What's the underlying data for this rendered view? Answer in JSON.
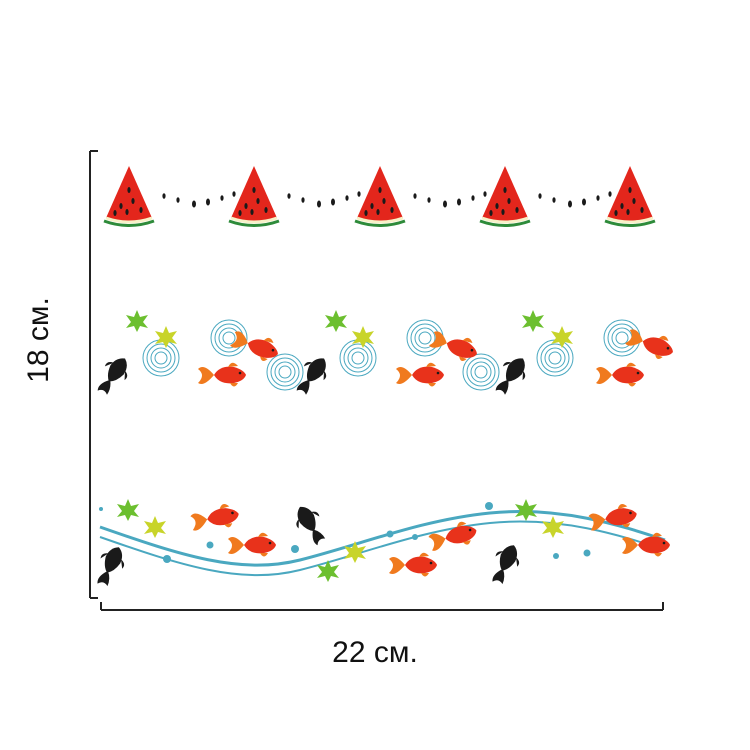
{
  "dimensions": {
    "width_label": "22 см.",
    "height_label": "18 см."
  },
  "pattern": {
    "rows": [
      {
        "name": "watermelon-row",
        "icons": [
          "watermelon-slice-icon",
          "watermelon-seed-icon"
        ]
      },
      {
        "name": "koi-ripple-row",
        "icons": [
          "goldfish-icon",
          "black-koi-icon",
          "maple-leaf-icon",
          "ripple-icon"
        ]
      },
      {
        "name": "koi-wave-row",
        "icons": [
          "goldfish-icon",
          "black-koi-icon",
          "maple-leaf-icon",
          "wave-icon",
          "bubble-icon"
        ]
      }
    ]
  },
  "colors": {
    "watermelon_red": "#e3261c",
    "rind_green": "#2e8b3a",
    "goldfish_red": "#e8321b",
    "goldfish_orange": "#f07a1e",
    "koi_black": "#1a1a1a",
    "leaf_green": "#6cbf2f",
    "leaf_yellow": "#c8d42a",
    "water_blue": "#4aa8c0",
    "ruler_line": "#222222"
  }
}
